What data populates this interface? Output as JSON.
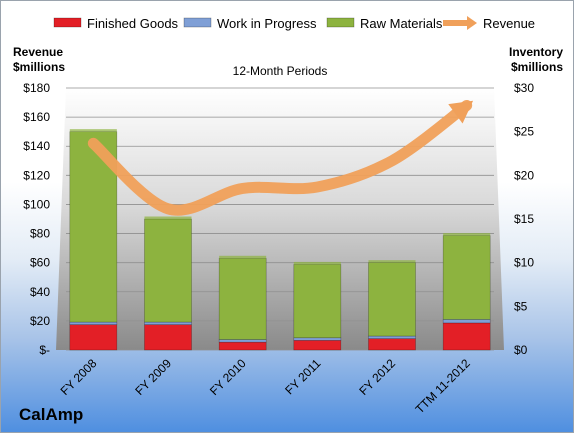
{
  "chart_data": {
    "type": "bar",
    "stacked": true,
    "title": "12-Month Periods",
    "company": "CalAmp",
    "left_axis_title": [
      "Revenue",
      "$millions"
    ],
    "right_axis_title": [
      "Inventory",
      "$millions"
    ],
    "categories": [
      "FY 2008",
      "FY 2009",
      "FY 2010",
      "FY 2011",
      "FY 2012",
      "TTM 11-2012"
    ],
    "left_ticks": [
      "$-",
      "$20",
      "$40",
      "$60",
      "$80",
      "$100",
      "$120",
      "$140",
      "$160",
      "$180"
    ],
    "right_ticks": [
      "$0",
      "$5",
      "$10",
      "$15",
      "$20",
      "$25",
      "$30"
    ],
    "left_ylim": [
      0,
      180
    ],
    "right_ylim": [
      0,
      30
    ],
    "legend_position": "top",
    "series": [
      {
        "name": "Finished Goods",
        "axis": "right",
        "color": "#e31f26",
        "values": [
          2.9,
          2.9,
          0.9,
          1.1,
          1.3,
          3.1
        ]
      },
      {
        "name": "Work in Progress",
        "axis": "right",
        "color": "#7f9fd6",
        "values": [
          0.3,
          0.3,
          0.3,
          0.3,
          0.3,
          0.4
        ]
      },
      {
        "name": "Raw Materials",
        "axis": "right",
        "color": "#8db33f",
        "values": [
          21.8,
          11.8,
          9.3,
          8.4,
          8.4,
          9.6
        ]
      },
      {
        "name": "Revenue",
        "axis": "left",
        "type": "line",
        "color": "#f0a05a",
        "values": [
          142,
          97,
          111,
          112,
          130,
          168
        ]
      }
    ]
  }
}
